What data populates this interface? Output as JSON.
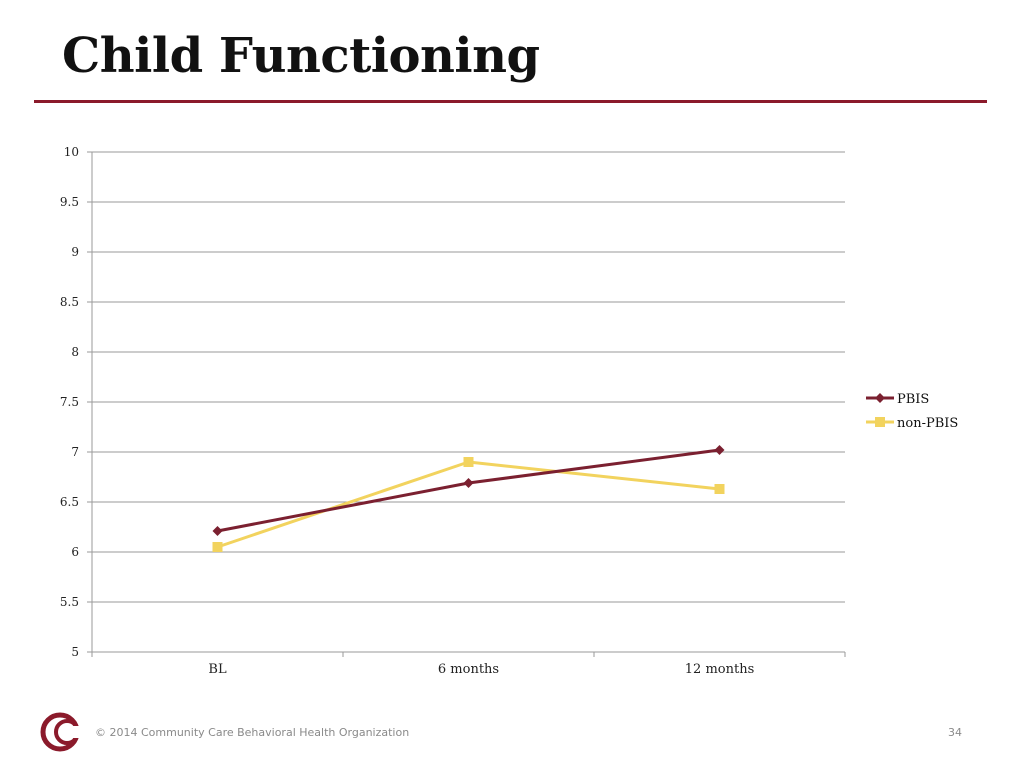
{
  "slide": {
    "title": "Child Functioning",
    "footer": "© 2014 Community Care Behavioral Health Organization",
    "page_number": "34",
    "accent_color": "#8b1a2b"
  },
  "chart_data": {
    "type": "line",
    "categories": [
      "BL",
      "6 months",
      "12 months"
    ],
    "ylim": [
      5,
      10
    ],
    "ytick_labels": [
      "5",
      "5.5",
      "6",
      "6.5",
      "7",
      "7.5",
      "8",
      "8.5",
      "9",
      "9.5",
      "10"
    ],
    "grid": true,
    "legend_position": "right",
    "series": [
      {
        "name": "PBIS",
        "values": [
          6.21,
          6.69,
          7.02
        ],
        "color": "#7b2030",
        "marker": "diamond"
      },
      {
        "name": "non-PBIS",
        "values": [
          6.05,
          6.9,
          6.63
        ],
        "color": "#f2d35e",
        "marker": "square"
      }
    ]
  }
}
